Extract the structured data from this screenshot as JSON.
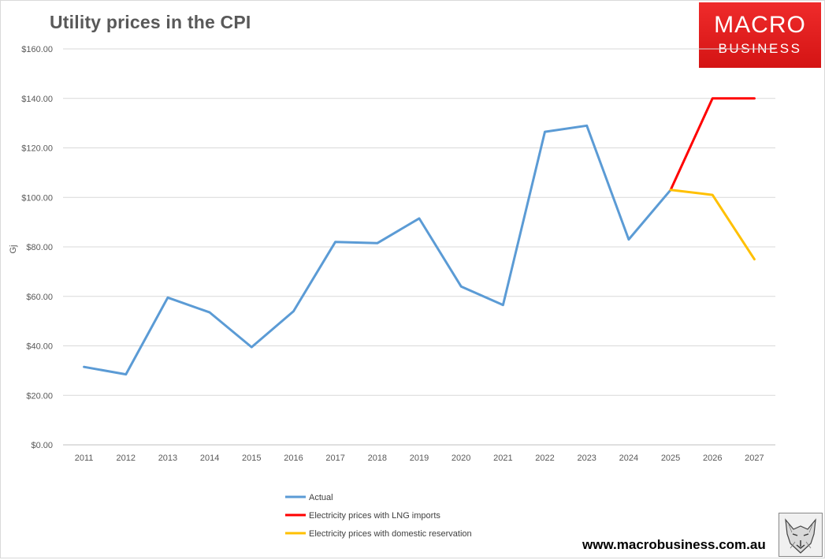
{
  "chart_data": {
    "type": "line",
    "title": "Utility prices in the CPI",
    "ylabel": "Gj",
    "xlabel": "",
    "ylim": [
      0,
      160
    ],
    "yticks": [
      "$0.00",
      "$20.00",
      "$40.00",
      "$60.00",
      "$80.00",
      "$100.00",
      "$120.00",
      "$140.00",
      "$160.00"
    ],
    "categories": [
      "2011",
      "2012",
      "2013",
      "2014",
      "2015",
      "2016",
      "2017",
      "2018",
      "2019",
      "2020",
      "2021",
      "2022",
      "2023",
      "2024",
      "2025",
      "2026",
      "2027"
    ],
    "grid": true,
    "legend_position": "bottom",
    "series": [
      {
        "name": "Actual",
        "color": "#5b9bd5",
        "values": [
          31.5,
          28.5,
          59.5,
          53.5,
          39.5,
          54,
          82,
          81.5,
          91.5,
          64,
          56.5,
          126.5,
          129,
          83,
          103,
          null,
          null
        ]
      },
      {
        "name": "Electricity prices with LNG imports",
        "color": "#ff0000",
        "values": [
          null,
          null,
          null,
          null,
          null,
          null,
          null,
          null,
          null,
          null,
          null,
          null,
          null,
          null,
          103,
          140,
          140
        ]
      },
      {
        "name": "Electricity prices with domestic reservation",
        "color": "#ffc000",
        "values": [
          null,
          null,
          null,
          null,
          null,
          null,
          null,
          null,
          null,
          null,
          null,
          null,
          null,
          null,
          103,
          101,
          75
        ]
      }
    ]
  },
  "logo": {
    "line1": "MACRO",
    "line2": "BUSINESS"
  },
  "footer": {
    "url": "www.macrobusiness.com.au"
  },
  "icons": {
    "mascot": "wolf-icon"
  }
}
